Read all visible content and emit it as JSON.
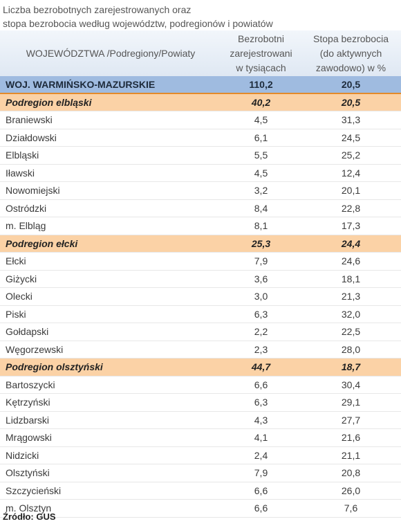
{
  "title_lines": [
    "Liczba bezrobotnych zarejestrowanych oraz",
    "stopa bezrobocia według województw, podregionów  i  powiatów"
  ],
  "chart_data": {
    "type": "table",
    "columns": [
      "WOJEWÓDZTWA /Podregiony/Powiaty",
      "Bezrobotni\nzarejestrowani\nw tysiącach",
      "Stopa bezrobocia\n(do aktywnych\nzawodowo) w %"
    ],
    "rows": [
      {
        "name": "WOJ. WARMIŃSKO-MAZURSKIE",
        "registered": "110,2",
        "rate": "20,5",
        "level": "woj"
      },
      {
        "name": "Podregion elbląski",
        "registered": "40,2",
        "rate": "20,5",
        "level": "sub"
      },
      {
        "name": "Braniewski",
        "registered": "4,5",
        "rate": "31,3",
        "level": "pow"
      },
      {
        "name": "Działdowski",
        "registered": "6,1",
        "rate": "24,5",
        "level": "pow"
      },
      {
        "name": "Elbląski",
        "registered": "5,5",
        "rate": "25,2",
        "level": "pow"
      },
      {
        "name": "Iławski",
        "registered": "4,5",
        "rate": "12,4",
        "level": "pow"
      },
      {
        "name": "Nowomiejski",
        "registered": "3,2",
        "rate": "20,1",
        "level": "pow"
      },
      {
        "name": "Ostródzki",
        "registered": "8,4",
        "rate": "22,8",
        "level": "pow"
      },
      {
        "name": "m. Elbląg",
        "registered": "8,1",
        "rate": "17,3",
        "level": "pow"
      },
      {
        "name": "Podregion ełcki",
        "registered": "25,3",
        "rate": "24,4",
        "level": "sub"
      },
      {
        "name": "Ełcki",
        "registered": "7,9",
        "rate": "24,6",
        "level": "pow"
      },
      {
        "name": "Giżycki",
        "registered": "3,6",
        "rate": "18,1",
        "level": "pow"
      },
      {
        "name": "Olecki",
        "registered": "3,0",
        "rate": "21,3",
        "level": "pow"
      },
      {
        "name": "Piski",
        "registered": "6,3",
        "rate": "32,0",
        "level": "pow"
      },
      {
        "name": "Gołdapski",
        "registered": "2,2",
        "rate": "22,5",
        "level": "pow"
      },
      {
        "name": "Węgorzewski",
        "registered": "2,3",
        "rate": "28,0",
        "level": "pow"
      },
      {
        "name": "Podregion olsztyński",
        "registered": "44,7",
        "rate": "18,7",
        "level": "sub"
      },
      {
        "name": "Bartoszycki",
        "registered": "6,6",
        "rate": "30,4",
        "level": "pow"
      },
      {
        "name": "Kętrzyński",
        "registered": "6,3",
        "rate": "29,1",
        "level": "pow"
      },
      {
        "name": "Lidzbarski",
        "registered": "4,3",
        "rate": "27,7",
        "level": "pow"
      },
      {
        "name": "Mrągowski",
        "registered": "4,1",
        "rate": "21,6",
        "level": "pow"
      },
      {
        "name": "Nidzicki",
        "registered": "2,4",
        "rate": "21,1",
        "level": "pow"
      },
      {
        "name": "Olsztyński",
        "registered": "7,9",
        "rate": "20,8",
        "level": "pow"
      },
      {
        "name": "Szczycieński",
        "registered": "6,6",
        "rate": "26,0",
        "level": "pow"
      },
      {
        "name": "m. Olsztyn",
        "registered": "6,6",
        "rate": "7,6",
        "level": "pow"
      }
    ]
  },
  "source": "Źródło: GUS"
}
